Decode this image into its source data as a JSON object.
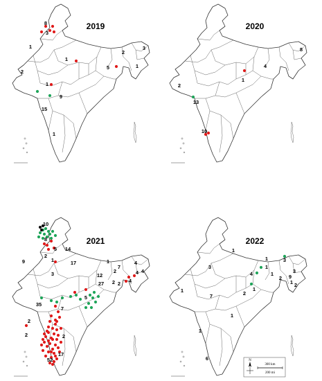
{
  "colors": {
    "red": "#e01b1b",
    "green": "#1fa55a",
    "black": "#111111"
  },
  "panels": [
    {
      "year": "2019",
      "counts": [
        "8",
        "3",
        "1",
        "1",
        "3",
        "2",
        "1",
        "2",
        "5",
        "1",
        "9",
        "15",
        "1"
      ],
      "red_dots": 8,
      "green_dots": 2,
      "black_dots": 0
    },
    {
      "year": "2020",
      "counts": [
        "8",
        "4",
        "1",
        "2",
        "13",
        "10"
      ],
      "red_dots": 3,
      "green_dots": 1,
      "black_dots": 0
    },
    {
      "year": "2021",
      "counts": [
        "10",
        "8",
        "5",
        "14",
        "2",
        "1",
        "9",
        "3",
        "17",
        "1",
        "7",
        "2",
        "4",
        "4",
        "4",
        "4",
        "12",
        "27",
        "2",
        "2",
        "35",
        "7",
        "5",
        "2",
        "2",
        "17",
        "52",
        "2"
      ],
      "red_dots": 55,
      "green_dots": 27,
      "black_dots": 3
    },
    {
      "year": "2022",
      "counts": [
        "1",
        "1",
        "3",
        "3",
        "1",
        "4",
        "3",
        "1",
        "2",
        "1",
        "9",
        "2",
        "2",
        "1",
        "7",
        "1",
        "1",
        "1",
        "6"
      ],
      "red_dots": 0,
      "green_dots": 4,
      "black_dots": 0
    }
  ],
  "scale_bar": {
    "north": "N",
    "km": "300 km",
    "mi": "200 mi"
  }
}
